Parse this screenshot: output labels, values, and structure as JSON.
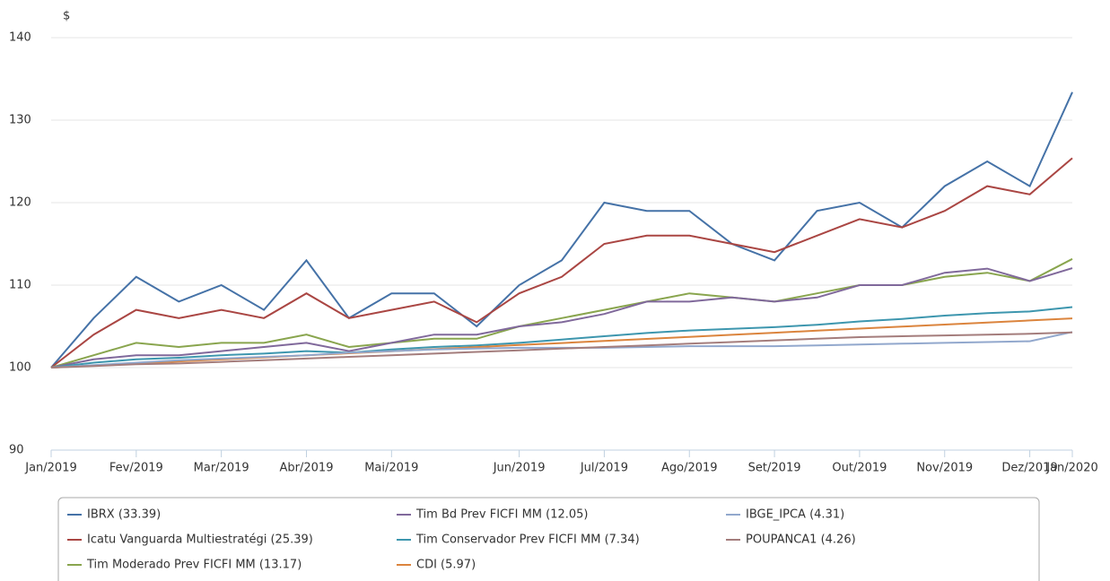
{
  "chart_data": {
    "type": "line",
    "y_label": "$",
    "categories": [
      "Jan/2019",
      null,
      "Fev/2019",
      null,
      "Mar/2019",
      null,
      "Abr/2019",
      null,
      "Mai/2019",
      null,
      null,
      "Jun/2019",
      null,
      "Jul/2019",
      null,
      "Ago/2019",
      null,
      "Set/2019",
      null,
      "Out/2019",
      null,
      "Nov/2019",
      null,
      "Dez/2019",
      "Jan/2020"
    ],
    "ylim": [
      90,
      140
    ],
    "yticks": [
      90,
      100,
      110,
      120,
      130,
      140
    ],
    "grid": true,
    "series": [
      {
        "name": "IBRX (33.39)",
        "color": "#4572a7",
        "values": [
          100,
          106,
          111,
          108,
          110,
          107,
          113,
          106,
          109,
          109,
          105,
          110,
          113,
          120,
          119,
          119,
          115,
          113,
          119,
          120,
          117,
          122,
          125,
          122,
          133.39
        ]
      },
      {
        "name": "Icatu Vanguarda Multiestratégi (25.39)",
        "color": "#aa4643",
        "values": [
          100,
          104,
          107,
          106,
          107,
          106,
          109,
          106,
          107,
          108,
          105.5,
          109,
          111,
          115,
          116,
          116,
          115,
          114,
          116,
          118,
          117,
          119,
          122,
          121,
          125.39
        ]
      },
      {
        "name": "Tim Moderado Prev FICFI MM (13.17)",
        "color": "#89a54e",
        "values": [
          100,
          101.5,
          103,
          102.5,
          103,
          103,
          104,
          102.5,
          103,
          103.5,
          103.5,
          105,
          106,
          107,
          108,
          109,
          108.5,
          108,
          109,
          110,
          110,
          111,
          111.5,
          110.5,
          113.17
        ]
      },
      {
        "name": "Tim Bd Prev FICFI MM (12.05)",
        "color": "#80699b",
        "values": [
          100,
          101,
          101.5,
          101.5,
          102,
          102.5,
          103,
          102,
          103,
          104,
          104,
          105,
          105.5,
          106.5,
          108,
          108,
          108.5,
          108,
          108.5,
          110,
          110,
          111.5,
          112,
          110.5,
          112.05
        ]
      },
      {
        "name": "Tim Conservador Prev FICFI MM (7.34)",
        "color": "#3d96ae",
        "values": [
          100,
          100.6,
          101,
          101.2,
          101.5,
          101.7,
          102,
          101.8,
          102.2,
          102.5,
          102.7,
          103,
          103.4,
          103.8,
          104.2,
          104.5,
          104.7,
          104.9,
          105.2,
          105.6,
          105.9,
          106.3,
          106.6,
          106.8,
          107.34
        ]
      },
      {
        "name": "CDI (5.97)",
        "color": "#db843d",
        "values": [
          100,
          100.25,
          100.5,
          100.75,
          100.99,
          101.24,
          101.49,
          101.74,
          101.99,
          102.24,
          102.49,
          102.74,
          102.98,
          103.23,
          103.48,
          103.73,
          103.98,
          104.23,
          104.48,
          104.73,
          104.97,
          105.22,
          105.47,
          105.72,
          105.97
        ]
      },
      {
        "name": "IBGE_IPCA (4.31)",
        "color": "#92a8cd",
        "values": [
          100,
          100.3,
          100.6,
          100.9,
          101.1,
          101.3,
          101.5,
          101.8,
          102,
          102.2,
          102.3,
          102.4,
          102.4,
          102.4,
          102.5,
          102.6,
          102.6,
          102.6,
          102.7,
          102.8,
          102.9,
          103,
          103.1,
          103.2,
          104.31
        ]
      },
      {
        "name": "POUPANCA1 (4.26)",
        "color": "#a47d7c",
        "values": [
          100,
          100.2,
          100.4,
          100.5,
          100.7,
          100.9,
          101.1,
          101.3,
          101.5,
          101.7,
          101.9,
          102.1,
          102.3,
          102.5,
          102.7,
          102.9,
          103.1,
          103.3,
          103.5,
          103.7,
          103.8,
          103.9,
          104,
          104.1,
          104.26
        ]
      }
    ]
  }
}
